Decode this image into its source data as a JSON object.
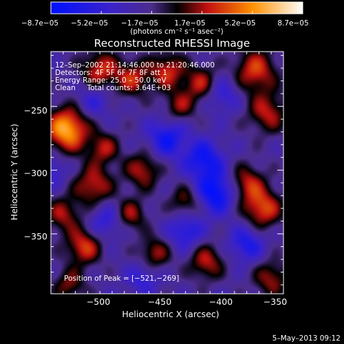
{
  "chart_data": {
    "type": "heatmap",
    "title": "Reconstructed RHESSI Image",
    "xlabel": "Heliocentric X (arcsec)",
    "ylabel": "Heliocentric Y (arcsec)",
    "xlim": [
      -535,
      -345
    ],
    "ylim": [
      -397,
      -207
    ],
    "x_ticks": [
      -500,
      -450,
      -400,
      -350
    ],
    "y_ticks": [
      -250,
      -300,
      -350
    ],
    "x_tick_labels": [
      "−500",
      "−450",
      "−400",
      "−350"
    ],
    "y_tick_labels": [
      "−250",
      "−300",
      "−350"
    ],
    "colorbar": {
      "min": -8.7e-05,
      "max": 8.7e-05,
      "tick_labels": [
        "−8.7e−05",
        "−5.2e−05",
        "−1.7e−05",
        "1.7e−05",
        "5.2e−05",
        "8.7e−05"
      ],
      "units": "(photons cm⁻² s⁻¹ asec⁻²)"
    },
    "annotations": [
      "12–Sep–2002 21:14:46.000 to 21:20:46.000",
      "Detectors: 4F 5F 6F 7F 8F att 1",
      "Energy Range: 25.0 – 50.0 keV",
      "Clean     Total counts: 3.64E+03"
    ],
    "peak_label": "Position of Peak = [−521,−269]",
    "peak": [
      -521,
      -269
    ],
    "timestamp": "5–May–2013 09:12",
    "blobs": [
      {
        "x": -522,
        "y": -268,
        "v": 1.0,
        "s": 12
      },
      {
        "x": -495,
        "y": -222,
        "v": 0.62,
        "s": 11
      },
      {
        "x": -468,
        "y": -228,
        "v": 0.55,
        "s": 10
      },
      {
        "x": -440,
        "y": -222,
        "v": 0.6,
        "s": 10
      },
      {
        "x": -412,
        "y": -232,
        "v": 0.55,
        "s": 10
      },
      {
        "x": -368,
        "y": -222,
        "v": 0.65,
        "s": 12
      },
      {
        "x": -358,
        "y": -255,
        "v": 0.55,
        "s": 11
      },
      {
        "x": -430,
        "y": -250,
        "v": 0.45,
        "s": 9
      },
      {
        "x": -492,
        "y": -283,
        "v": 0.5,
        "s": 9
      },
      {
        "x": -460,
        "y": -300,
        "v": 0.55,
        "s": 10
      },
      {
        "x": -500,
        "y": -312,
        "v": 0.6,
        "s": 11
      },
      {
        "x": -470,
        "y": -335,
        "v": 0.5,
        "s": 9
      },
      {
        "x": -425,
        "y": -325,
        "v": 0.45,
        "s": 9
      },
      {
        "x": -375,
        "y": -310,
        "v": 0.55,
        "s": 10
      },
      {
        "x": -362,
        "y": -330,
        "v": 0.7,
        "s": 11
      },
      {
        "x": -525,
        "y": -335,
        "v": 0.5,
        "s": 10
      },
      {
        "x": -508,
        "y": -360,
        "v": 0.65,
        "s": 10
      },
      {
        "x": -450,
        "y": -365,
        "v": 0.5,
        "s": 9
      },
      {
        "x": -408,
        "y": -372,
        "v": 0.55,
        "s": 10
      },
      {
        "x": -355,
        "y": -385,
        "v": 0.5,
        "s": 10
      },
      {
        "x": -520,
        "y": -390,
        "v": 0.45,
        "s": 9
      },
      {
        "x": -395,
        "y": -240,
        "v": -0.4,
        "s": 10
      },
      {
        "x": -500,
        "y": -245,
        "v": -0.35,
        "s": 10
      },
      {
        "x": -440,
        "y": -275,
        "v": -0.55,
        "s": 11
      },
      {
        "x": -410,
        "y": -292,
        "v": -0.6,
        "s": 11
      },
      {
        "x": -400,
        "y": -318,
        "v": -0.7,
        "s": 11
      },
      {
        "x": -425,
        "y": -348,
        "v": -0.5,
        "s": 10
      },
      {
        "x": -490,
        "y": -340,
        "v": -0.4,
        "s": 10
      },
      {
        "x": -375,
        "y": -358,
        "v": -0.5,
        "s": 10
      },
      {
        "x": -460,
        "y": -385,
        "v": -0.35,
        "s": 9
      },
      {
        "x": -535,
        "y": -300,
        "v": -0.35,
        "s": 9
      }
    ]
  }
}
